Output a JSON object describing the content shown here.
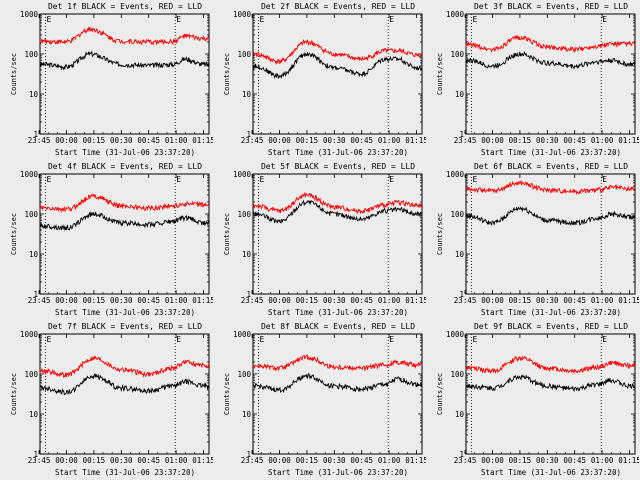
{
  "common": {
    "ylabel": "Counts/sec",
    "xlabel": "Start Time (31-Jul-06 23:37:20)",
    "x_tick_labels": [
      "23:45",
      "00:00",
      "00:15",
      "00:30",
      "00:45",
      "01:00",
      "01:15"
    ],
    "y_tick_labels": [
      "1",
      "10",
      "100",
      "1000"
    ],
    "marker_label": "E",
    "colors": {
      "events": "#000000",
      "lld": "#ff0000",
      "background": "#ececec"
    }
  },
  "chart_data": [
    {
      "type": "line",
      "title": "Det 1f BLACK = Events, RED = LLD",
      "yscale": "log",
      "ylim": [
        1,
        1000
      ],
      "x_minutes": [
        -13,
        0,
        13,
        30,
        45,
        58,
        65,
        75
      ],
      "series": [
        {
          "name": "Events",
          "values": [
            55,
            48,
            100,
            55,
            52,
            55,
            75,
            55
          ]
        },
        {
          "name": "LLD",
          "values": [
            210,
            200,
            420,
            210,
            200,
            205,
            280,
            240
          ]
        }
      ]
    },
    {
      "type": "line",
      "title": "Det 2f BLACK = Events, RED = LLD",
      "yscale": "log",
      "ylim": [
        1,
        1000
      ],
      "x_minutes": [
        -13,
        0,
        15,
        30,
        45,
        58,
        65,
        75
      ],
      "series": [
        {
          "name": "Events",
          "values": [
            50,
            28,
            100,
            45,
            32,
            75,
            75,
            45
          ]
        },
        {
          "name": "LLD",
          "values": [
            100,
            65,
            200,
            100,
            75,
            120,
            120,
            95
          ]
        }
      ]
    },
    {
      "type": "line",
      "title": "Det 3f BLACK = Events, RED = LLD",
      "yscale": "log",
      "ylim": [
        1,
        1000
      ],
      "x_minutes": [
        -13,
        0,
        15,
        30,
        45,
        58,
        65,
        75
      ],
      "series": [
        {
          "name": "Events",
          "values": [
            70,
            50,
            100,
            60,
            50,
            65,
            70,
            55
          ]
        },
        {
          "name": "LLD",
          "values": [
            170,
            130,
            260,
            150,
            130,
            160,
            180,
            180
          ]
        }
      ]
    },
    {
      "type": "line",
      "title": "Det 4f BLACK = Events, RED = LLD",
      "yscale": "log",
      "ylim": [
        1,
        1000
      ],
      "x_minutes": [
        -13,
        0,
        15,
        30,
        45,
        58,
        65,
        75
      ],
      "series": [
        {
          "name": "Events",
          "values": [
            50,
            45,
            100,
            60,
            55,
            65,
            80,
            60
          ]
        },
        {
          "name": "LLD",
          "values": [
            140,
            130,
            280,
            160,
            140,
            160,
            180,
            170
          ]
        }
      ]
    },
    {
      "type": "line",
      "title": "Det 5f BLACK = Events, RED = LLD",
      "yscale": "log",
      "ylim": [
        1,
        1000
      ],
      "x_minutes": [
        -13,
        0,
        15,
        30,
        45,
        58,
        65,
        75
      ],
      "series": [
        {
          "name": "Events",
          "values": [
            100,
            65,
            200,
            100,
            75,
            120,
            130,
            100
          ]
        },
        {
          "name": "LLD",
          "values": [
            160,
            120,
            300,
            150,
            120,
            170,
            200,
            160
          ]
        }
      ]
    },
    {
      "type": "line",
      "title": "Det 6f BLACK = Events, RED = LLD",
      "yscale": "log",
      "ylim": [
        1,
        1000
      ],
      "x_minutes": [
        -13,
        0,
        15,
        30,
        45,
        58,
        65,
        75
      ],
      "series": [
        {
          "name": "Events",
          "values": [
            90,
            60,
            140,
            70,
            60,
            80,
            100,
            85
          ]
        },
        {
          "name": "LLD",
          "values": [
            420,
            380,
            600,
            400,
            370,
            400,
            460,
            420
          ]
        }
      ]
    },
    {
      "type": "line",
      "title": "Det 7f BLACK = Events, RED = LLD",
      "yscale": "log",
      "ylim": [
        1,
        1000
      ],
      "x_minutes": [
        -13,
        0,
        15,
        30,
        45,
        58,
        65,
        75
      ],
      "series": [
        {
          "name": "Events",
          "values": [
            45,
            35,
            90,
            45,
            38,
            50,
            65,
            50
          ]
        },
        {
          "name": "LLD",
          "values": [
            120,
            95,
            250,
            130,
            100,
            140,
            200,
            160
          ]
        }
      ]
    },
    {
      "type": "line",
      "title": "Det 8f BLACK = Events, RED = LLD",
      "yscale": "log",
      "ylim": [
        1,
        1000
      ],
      "x_minutes": [
        -13,
        0,
        15,
        30,
        45,
        58,
        65,
        75
      ],
      "series": [
        {
          "name": "Events",
          "values": [
            50,
            40,
            90,
            50,
            42,
            55,
            75,
            55
          ]
        },
        {
          "name": "LLD",
          "values": [
            160,
            140,
            260,
            150,
            140,
            170,
            200,
            170
          ]
        }
      ]
    },
    {
      "type": "line",
      "title": "Det 9f BLACK = Events, RED = LLD",
      "yscale": "log",
      "ylim": [
        1,
        1000
      ],
      "x_minutes": [
        -13,
        0,
        15,
        30,
        45,
        58,
        65,
        75
      ],
      "series": [
        {
          "name": "Events",
          "values": [
            50,
            45,
            85,
            50,
            42,
            55,
            70,
            50
          ]
        },
        {
          "name": "LLD",
          "values": [
            140,
            120,
            250,
            140,
            120,
            150,
            190,
            160
          ]
        }
      ]
    }
  ]
}
